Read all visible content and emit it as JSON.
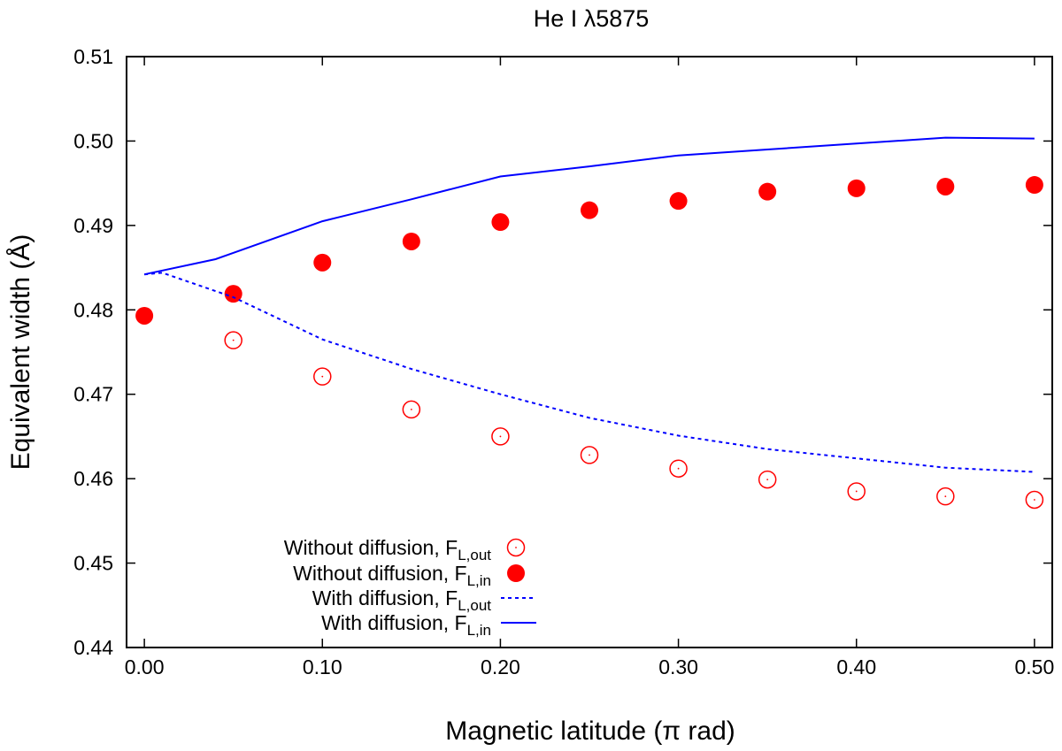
{
  "chart_data": {
    "type": "scatter",
    "title": "He I λ5875",
    "xlabel": "Magnetic latitude (π rad)",
    "ylabel": "Equivalent width (Å)",
    "xlim": [
      -0.01,
      0.51
    ],
    "ylim": [
      0.44,
      0.51
    ],
    "x_ticks": [
      {
        "v": 0.0,
        "label": "0.00"
      },
      {
        "v": 0.1,
        "label": "0.10"
      },
      {
        "v": 0.2,
        "label": "0.20"
      },
      {
        "v": 0.3,
        "label": "0.30"
      },
      {
        "v": 0.4,
        "label": "0.40"
      },
      {
        "v": 0.5,
        "label": "0.50"
      }
    ],
    "y_ticks": [
      {
        "v": 0.44,
        "label": "0.44"
      },
      {
        "v": 0.45,
        "label": "0.45"
      },
      {
        "v": 0.46,
        "label": "0.46"
      },
      {
        "v": 0.47,
        "label": "0.47"
      },
      {
        "v": 0.48,
        "label": "0.48"
      },
      {
        "v": 0.49,
        "label": "0.49"
      },
      {
        "v": 0.5,
        "label": "0.50"
      },
      {
        "v": 0.51,
        "label": "0.51"
      }
    ],
    "grid": false,
    "legend_position": "bottom-left",
    "series": [
      {
        "name": "Without diffusion, F_L,out",
        "label_main": "Without diffusion, F",
        "label_sub": "L,out",
        "style": "open-circle",
        "color": "#ff0000",
        "x": [
          0.05,
          0.1,
          0.15,
          0.2,
          0.25,
          0.3,
          0.35,
          0.4,
          0.45,
          0.5
        ],
        "y": [
          0.4764,
          0.4721,
          0.4682,
          0.465,
          0.4628,
          0.4612,
          0.4599,
          0.4585,
          0.4579,
          0.4575
        ]
      },
      {
        "name": "Without diffusion, F_L,in",
        "label_main": "Without diffusion, F",
        "label_sub": "L,in",
        "style": "filled-circle",
        "color": "#ff0000",
        "x": [
          0.0,
          0.05,
          0.1,
          0.15,
          0.2,
          0.25,
          0.3,
          0.35,
          0.4,
          0.45,
          0.5
        ],
        "y": [
          0.4793,
          0.4819,
          0.4856,
          0.4881,
          0.4904,
          0.4918,
          0.4929,
          0.494,
          0.4944,
          0.4946,
          0.4948
        ]
      },
      {
        "name": "With diffusion, F_L,out",
        "label_main": "With diffusion, F",
        "label_sub": "L,out",
        "style": "dashed-line",
        "color": "#0000ff",
        "x": [
          0.0,
          0.01,
          0.05,
          0.1,
          0.15,
          0.2,
          0.25,
          0.3,
          0.35,
          0.4,
          0.45,
          0.5
        ],
        "y": [
          0.4842,
          0.4844,
          0.4815,
          0.4765,
          0.473,
          0.47,
          0.4672,
          0.4651,
          0.4635,
          0.4624,
          0.4613,
          0.4608
        ]
      },
      {
        "name": "With diffusion, F_L,in",
        "label_main": "With diffusion, F",
        "label_sub": "L,in",
        "style": "solid-line",
        "color": "#0000ff",
        "x": [
          0.0,
          0.04,
          0.1,
          0.15,
          0.2,
          0.25,
          0.3,
          0.35,
          0.4,
          0.45,
          0.5
        ],
        "y": [
          0.4842,
          0.486,
          0.4905,
          0.4931,
          0.4958,
          0.497,
          0.4983,
          0.499,
          0.4997,
          0.5004,
          0.5003
        ]
      }
    ]
  }
}
